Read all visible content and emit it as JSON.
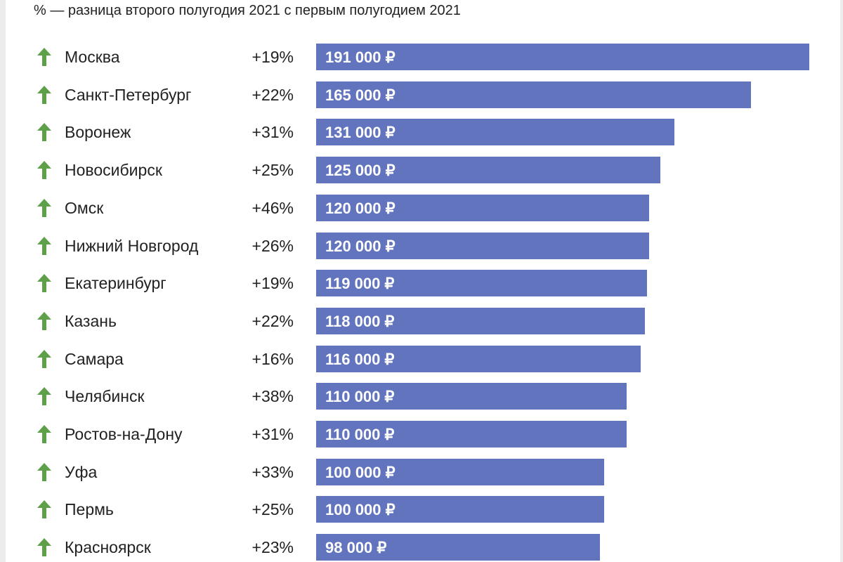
{
  "subtitle": "% — разница второго полугодия 2021 с первым полугодием 2021",
  "colors": {
    "bar": "#6174bd",
    "arrow_up": "#5ea04a"
  },
  "chart_data": {
    "type": "bar",
    "orientation": "horizontal",
    "title": "",
    "subtitle": "% — разница второго полугодия 2021 с первым полугодием 2021",
    "categories": [
      "Москва",
      "Санкт-Петербург",
      "Воронеж",
      "Новосибирск",
      "Омск",
      "Нижний Новгород",
      "Екатеринбург",
      "Казань",
      "Самара",
      "Челябинск",
      "Ростов-на-Дону",
      "Уфа",
      "Пермь",
      "Красноярск"
    ],
    "values": [
      191000,
      165000,
      131000,
      125000,
      120000,
      120000,
      119000,
      118000,
      116000,
      110000,
      110000,
      100000,
      100000,
      98000
    ],
    "value_labels": [
      "191 000 ₽",
      "165 000 ₽",
      "131 000 ₽",
      "125 000 ₽",
      "120 000 ₽",
      "120 000 ₽",
      "119 000 ₽",
      "118 000 ₽",
      "116 000 ₽",
      "110 000 ₽",
      "110 000 ₽",
      "100 000 ₽",
      "100 000 ₽",
      "98 000 ₽"
    ],
    "change_labels": [
      "+19%",
      "+22%",
      "+31%",
      "+25%",
      "+46%",
      "+26%",
      "+19%",
      "+22%",
      "+16%",
      "+38%",
      "+31%",
      "+33%",
      "+25%",
      "+23%"
    ],
    "change_icon": "arrow-up-icon",
    "xlabel": "",
    "ylabel": "",
    "grid": false
  }
}
